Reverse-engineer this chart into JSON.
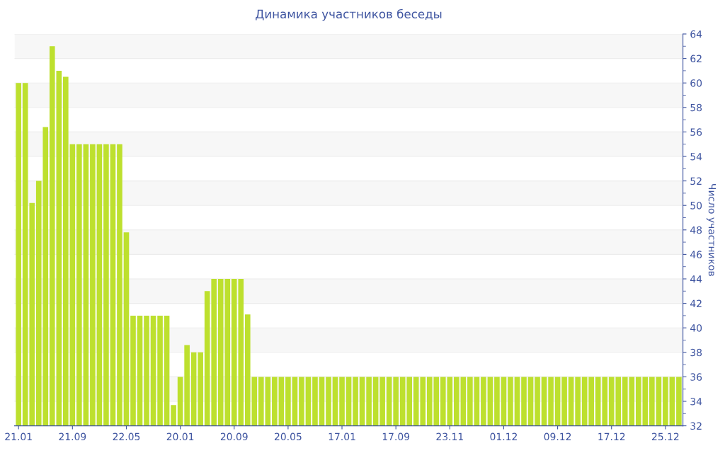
{
  "chart_data": {
    "type": "bar",
    "title": "Динамика участников беседы",
    "ylabel": "Число участников",
    "categories": [
      "21.01",
      null,
      null,
      null,
      null,
      null,
      null,
      null,
      "21.09",
      null,
      null,
      null,
      null,
      null,
      null,
      null,
      "22.05",
      null,
      null,
      null,
      null,
      null,
      null,
      null,
      "20.01",
      null,
      null,
      null,
      null,
      null,
      null,
      null,
      "20.09",
      null,
      null,
      null,
      null,
      null,
      null,
      null,
      "20.05",
      null,
      null,
      null,
      null,
      null,
      null,
      null,
      "17.01",
      null,
      null,
      null,
      null,
      null,
      null,
      null,
      "17.09",
      null,
      null,
      null,
      null,
      null,
      null,
      null,
      "23.11",
      null,
      null,
      null,
      null,
      null,
      null,
      null,
      "01.12",
      null,
      null,
      null,
      null,
      null,
      null,
      null,
      "09.12",
      null,
      null,
      null,
      null,
      null,
      null,
      null,
      "17.12",
      null,
      null,
      null,
      null,
      null,
      null,
      null,
      "25.12",
      null,
      null
    ],
    "values": [
      60,
      60,
      50.2,
      52,
      56.4,
      63,
      61,
      60.5,
      55,
      55,
      55,
      55,
      55,
      55,
      55,
      55,
      47.8,
      41,
      41,
      41,
      41,
      41,
      41,
      33.7,
      36,
      38.6,
      38,
      38,
      43,
      44,
      44,
      44,
      44,
      44,
      41.1,
      36,
      36,
      36,
      36,
      36,
      36,
      36,
      36,
      36,
      36,
      36,
      36,
      36,
      36,
      36,
      36,
      36,
      36,
      36,
      36,
      36,
      36,
      36,
      36,
      36,
      36,
      36,
      36,
      36,
      36,
      36,
      36,
      36,
      36,
      36,
      36,
      36,
      36,
      36,
      36,
      36,
      36,
      36,
      36,
      36,
      36,
      36,
      36,
      36,
      36,
      36,
      36,
      36,
      36,
      36,
      36,
      36,
      36,
      36,
      36,
      36,
      36,
      36,
      36
    ],
    "color": "#bde02e",
    "ylim": [
      32,
      64
    ],
    "yticks": [
      32,
      34,
      36,
      38,
      40,
      42,
      44,
      46,
      48,
      50,
      52,
      54,
      56,
      58,
      60,
      62,
      64
    ],
    "grid": "y"
  }
}
